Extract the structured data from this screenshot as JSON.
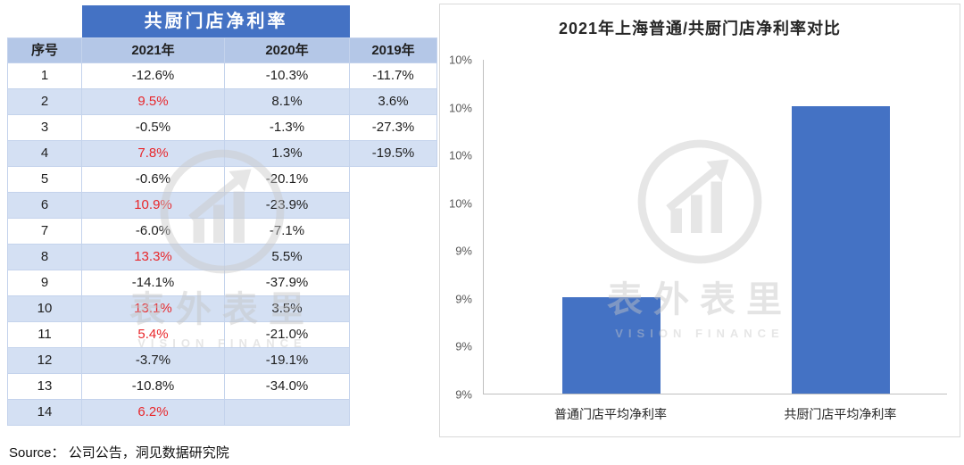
{
  "table": {
    "title": "共厨门店净利率",
    "headers": [
      "序号",
      "2021年",
      "2020年",
      "2019年"
    ],
    "rows": [
      [
        "1",
        "-12.6%",
        "-10.3%",
        "-11.7%"
      ],
      [
        "2",
        "9.5%",
        "8.1%",
        "3.6%"
      ],
      [
        "3",
        "-0.5%",
        "-1.3%",
        "-27.3%"
      ],
      [
        "4",
        "7.8%",
        "1.3%",
        "-19.5%"
      ],
      [
        "5",
        "-0.6%",
        "-20.1%",
        ""
      ],
      [
        "6",
        "10.9%",
        "-23.9%",
        ""
      ],
      [
        "7",
        "-6.0%",
        "-7.1%",
        ""
      ],
      [
        "8",
        "13.3%",
        "5.5%",
        ""
      ],
      [
        "9",
        "-14.1%",
        "-37.9%",
        ""
      ],
      [
        "10",
        "13.1%",
        "3.5%",
        ""
      ],
      [
        "11",
        "5.4%",
        "-21.0%",
        ""
      ],
      [
        "12",
        "-3.7%",
        "-19.1%",
        ""
      ],
      [
        "13",
        "-10.8%",
        "-34.0%",
        ""
      ],
      [
        "14",
        "6.2%",
        "",
        ""
      ]
    ]
  },
  "chart_data": {
    "type": "bar",
    "title": "2021年上海普通/共厨门店净利率对比",
    "categories": [
      "普通门店平均净利率",
      "共厨门店平均净利率"
    ],
    "values": [
      9.29,
      9.86
    ],
    "unit": "%",
    "ylim": [
      9,
      10
    ],
    "y_tick_labels": [
      "10%",
      "10%",
      "10%",
      "10%",
      "9%",
      "9%",
      "9%",
      "9%"
    ],
    "bar_color": "#4472c4",
    "grid": false,
    "legend": "none"
  },
  "watermark": {
    "cn": "表外表里",
    "en": "VISION FINANCE",
    "logo_icon": "vision-finance-logo-icon"
  },
  "source": {
    "text": "Source： 公司公告，洞见数据研究院"
  },
  "colors": {
    "title_bar_blue": "#4472c4",
    "header_bg": "#b4c7e7",
    "band_bg": "#d4e0f3",
    "red_value": "#e8262a",
    "bar_blue": "#4472c4",
    "axis_gray": "#bfbfbf",
    "panel_border": "#d9d9d9"
  }
}
